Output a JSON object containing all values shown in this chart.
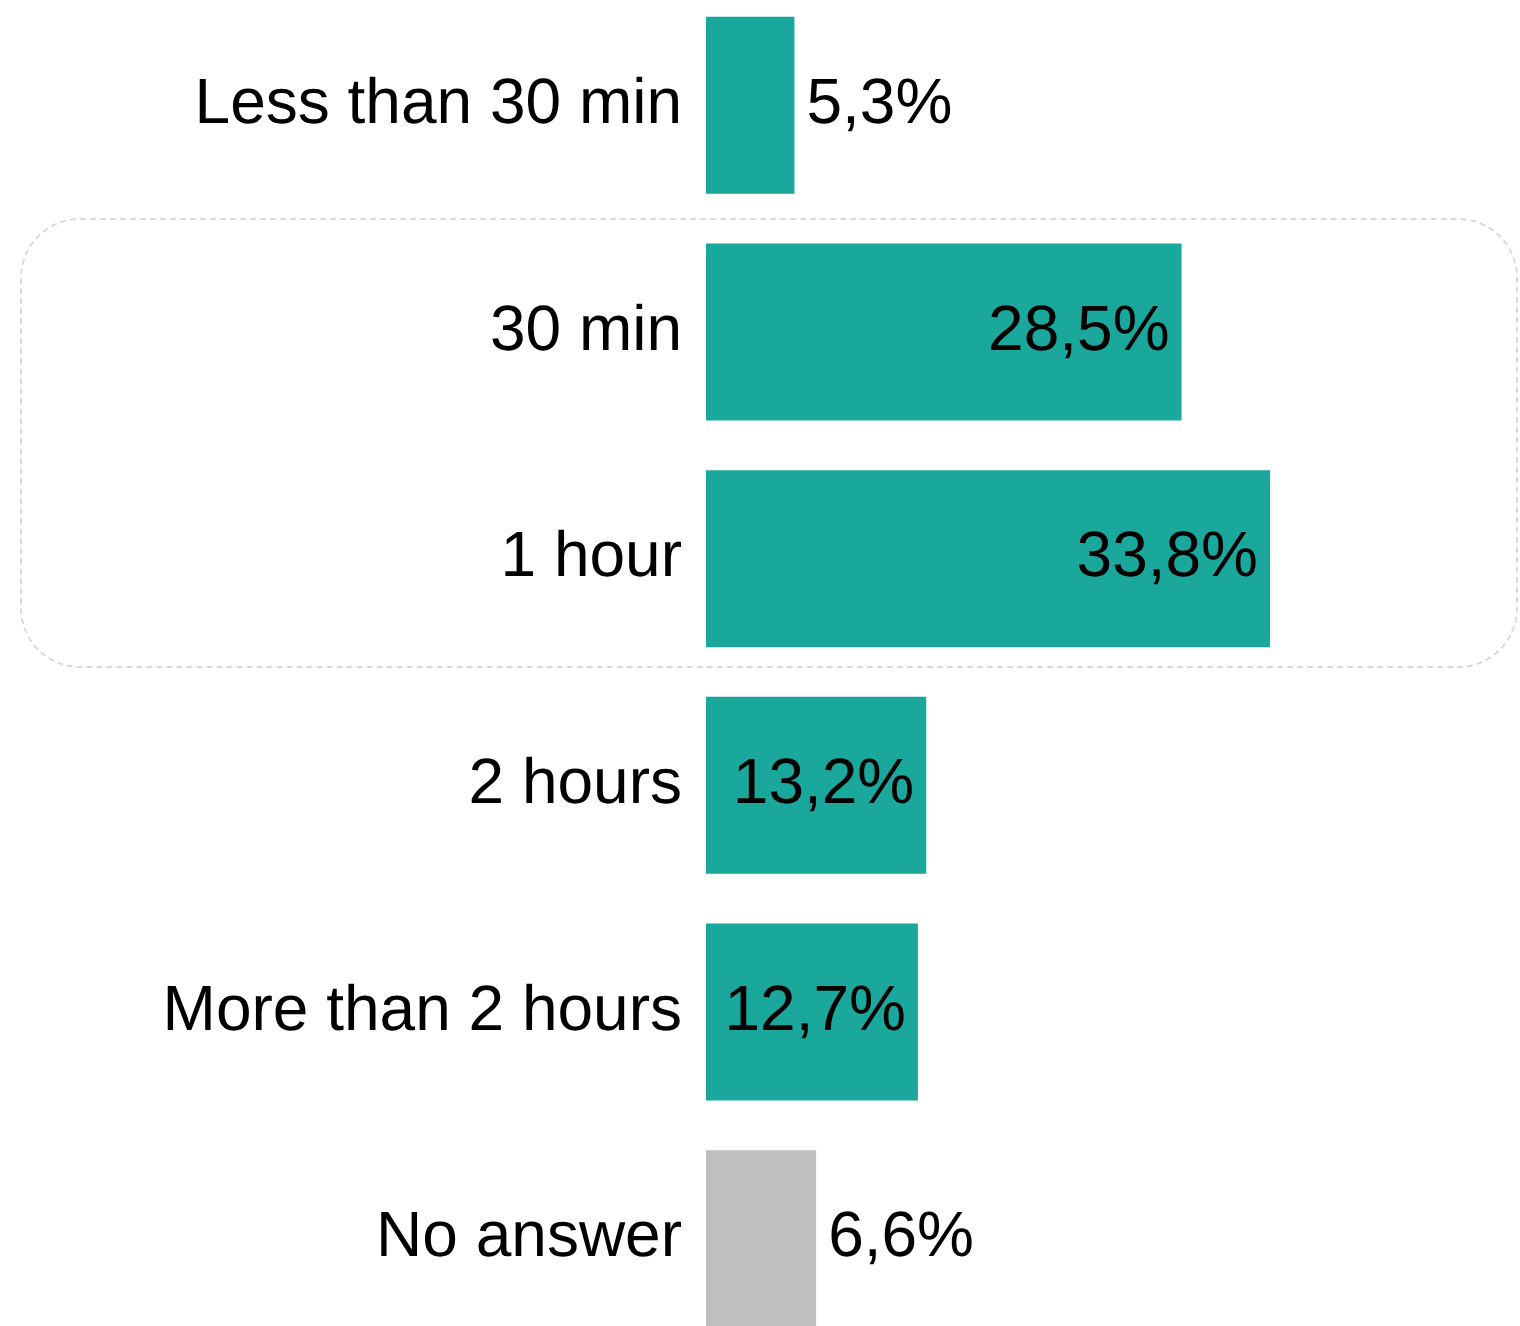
{
  "chart_data": {
    "type": "bar",
    "orientation": "horizontal",
    "categories": [
      "Less than 30 min",
      "30 min",
      "1 hour",
      "2 hours",
      "More than 2 hours",
      "No answer"
    ],
    "values": [
      5.3,
      28.5,
      33.8,
      13.2,
      12.7,
      6.6
    ],
    "colors": [
      "#1aa89c",
      "#1aa89c",
      "#1aa89c",
      "#1aa89c",
      "#1aa89c",
      "#bfbfbf"
    ],
    "value_labels": [
      "5,3%",
      "28,5%",
      "33,8%",
      "13,2%",
      "12,7%",
      "6,6%"
    ],
    "tick_labels": "y",
    "grid": false,
    "legend": false
  }
}
